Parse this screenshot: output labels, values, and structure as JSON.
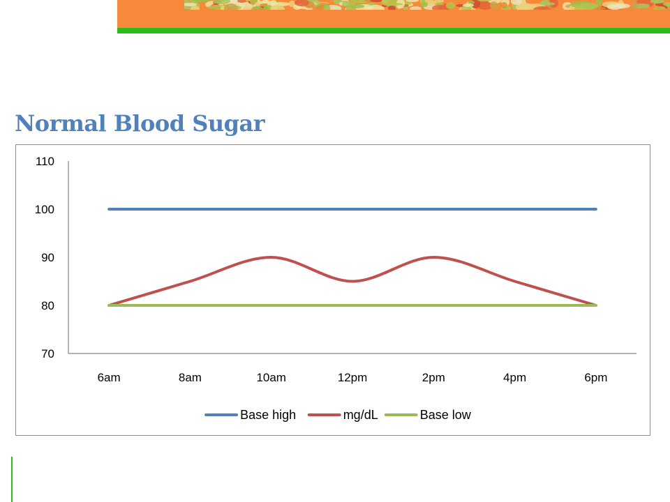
{
  "slide": {
    "title": "Normal Blood Sugar"
  },
  "colors": {
    "banner_orange": "#f7893b",
    "banner_green": "#2cbd18",
    "title_blue": "#4f81bd"
  },
  "chart_data": {
    "type": "line",
    "title": "",
    "xlabel": "",
    "ylabel": "",
    "categories": [
      "6am",
      "8am",
      "10am",
      "12pm",
      "2pm",
      "4pm",
      "6pm"
    ],
    "ylim": [
      70,
      110
    ],
    "yticks": [
      70,
      80,
      90,
      100,
      110
    ],
    "grid": false,
    "legend_position": "bottom",
    "series": [
      {
        "name": "Base high",
        "color": "#4f81bd",
        "values": [
          100,
          100,
          100,
          100,
          100,
          100,
          100
        ]
      },
      {
        "name": "mg/dL",
        "color": "#c0504d",
        "values": [
          80,
          85,
          90,
          85,
          90,
          85,
          80
        ]
      },
      {
        "name": "Base low",
        "color": "#9bbb59",
        "values": [
          80,
          80,
          80,
          80,
          80,
          80,
          80
        ]
      }
    ]
  }
}
